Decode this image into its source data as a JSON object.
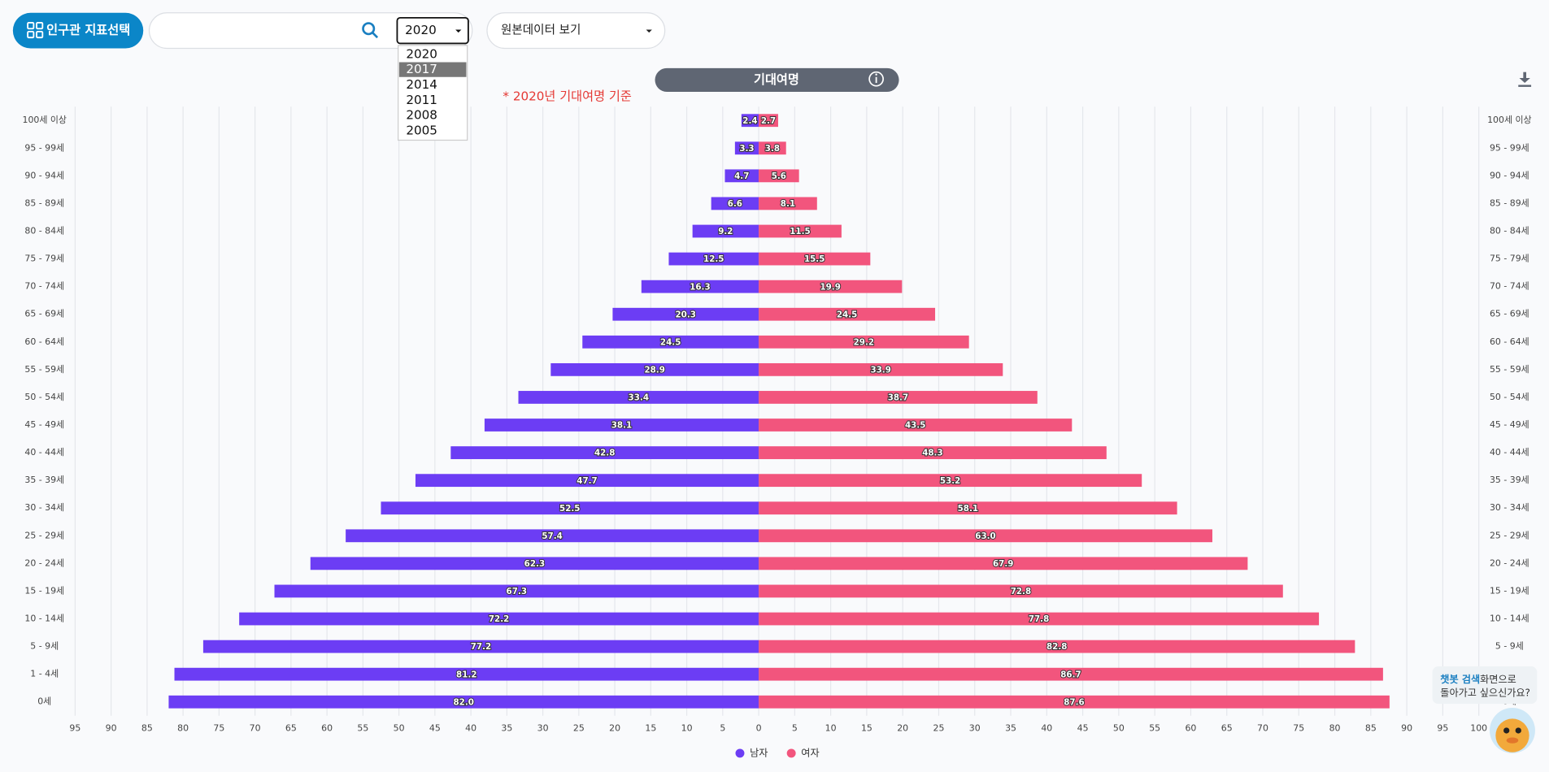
{
  "ui": {
    "indicator_button": "인구관 지표선택",
    "year_select": {
      "selected": "2020",
      "options": [
        "2020",
        "2017",
        "2014",
        "2011",
        "2008",
        "2005"
      ]
    },
    "raw_data_select": "원본데이터 보기",
    "chatbot": {
      "highlight": "챗봇 검색",
      "line1_rest": "화면으로",
      "line2": "돌아가고 싶으신가요?"
    }
  },
  "chart_data": {
    "type": "pyramid",
    "title": "기대여명",
    "annotation": "* 2020년 기대여명 기준",
    "categories": [
      "100세 이상",
      "95 - 99세",
      "90 - 94세",
      "85 - 89세",
      "80 - 84세",
      "75 - 79세",
      "70 - 74세",
      "65 - 69세",
      "60 - 64세",
      "55 - 59세",
      "50 - 54세",
      "45 - 49세",
      "40 - 44세",
      "35 - 39세",
      "30 - 34세",
      "25 - 29세",
      "20 - 24세",
      "15 - 19세",
      "10 - 14세",
      "5 - 9세",
      "1 - 4세",
      "0세"
    ],
    "series": [
      {
        "name": "남자",
        "color": "#6c3df4",
        "side": "left",
        "values": [
          2.4,
          3.3,
          4.7,
          6.6,
          9.2,
          12.5,
          16.3,
          20.3,
          24.5,
          28.9,
          33.4,
          38.1,
          42.8,
          47.7,
          52.5,
          57.4,
          62.3,
          67.3,
          72.2,
          77.2,
          81.2,
          82.0
        ],
        "value_labels": [
          "2.4",
          "3.3",
          "4.7",
          "6.6",
          "9.2",
          "12.5",
          "16.3",
          "20.3",
          "24.5",
          "28.9",
          "33.4",
          "38.1",
          "42.8",
          "47.7",
          "52.5",
          "57.4",
          "62.3",
          "67.3",
          "72.2",
          "77.2",
          "81.2",
          "82.0"
        ]
      },
      {
        "name": "여자",
        "color": "#f2557d",
        "side": "right",
        "values": [
          2.7,
          3.8,
          5.6,
          8.1,
          11.5,
          15.5,
          19.9,
          24.5,
          29.2,
          33.9,
          38.7,
          43.5,
          48.3,
          53.2,
          58.1,
          63.0,
          67.9,
          72.8,
          77.8,
          82.8,
          86.7,
          87.6
        ],
        "value_labels": [
          "2.7",
          "3.8",
          "5.6",
          "8.1",
          "11.5",
          "15.5",
          "19.9",
          "24.5",
          "29.2",
          "33.9",
          "38.7",
          "43.5",
          "48.3",
          "53.2",
          "58.1",
          "63.0",
          "67.9",
          "72.8",
          "77.8",
          "82.8",
          "86.7",
          "87.6"
        ]
      }
    ],
    "xlim_left": [
      0,
      95
    ],
    "xticks_left": [
      95,
      90,
      85,
      80,
      75,
      70,
      65,
      60,
      55,
      50,
      45,
      40,
      35,
      30,
      25,
      20,
      15,
      10,
      5,
      0
    ],
    "xlim_right": [
      0,
      100
    ],
    "xticks_right": [
      5,
      10,
      15,
      20,
      25,
      30,
      35,
      40,
      45,
      50,
      55,
      60,
      65,
      70,
      75,
      80,
      85,
      90,
      95,
      100
    ],
    "grid": true,
    "legend": "bottom"
  }
}
